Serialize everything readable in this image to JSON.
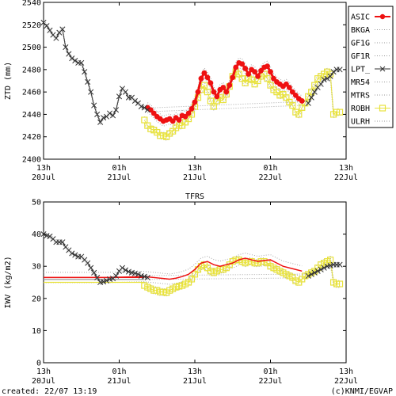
{
  "footer": {
    "created": "created: 22/07 13:19",
    "credit": "(c)KNMI/EGVAP"
  },
  "legend": [
    {
      "name": "ASIC",
      "color": "#ee1111",
      "style": "red-dot-line"
    },
    {
      "name": "BKGA",
      "color": "#999999",
      "style": "dotted"
    },
    {
      "name": "GF1G",
      "color": "#999999",
      "style": "dotted"
    },
    {
      "name": "GF1R",
      "color": "#999999",
      "style": "dotted"
    },
    {
      "name": "LPT_",
      "color": "#333333",
      "style": "x-line"
    },
    {
      "name": "MR54",
      "color": "#999999",
      "style": "dotted"
    },
    {
      "name": "MTRS",
      "color": "#999999",
      "style": "dotted"
    },
    {
      "name": "ROBH",
      "color": "#e8e23c",
      "style": "yellow-square-line"
    },
    {
      "name": "ULRH",
      "color": "#999999",
      "style": "dotted"
    }
  ],
  "chart_data": [
    {
      "type": "line",
      "title": "",
      "ylabel": "ZTD (mm)",
      "xlabel": "",
      "ylim": [
        2400,
        2540
      ],
      "yticks": [
        2400,
        2420,
        2440,
        2460,
        2480,
        2500,
        2520,
        2540
      ],
      "xlim": [
        0,
        48
      ],
      "xticks": [
        {
          "x": 0,
          "line1": "13h",
          "line2": "20Jul"
        },
        {
          "x": 12,
          "line1": "01h",
          "line2": "21Jul"
        },
        {
          "x": 24,
          "line1": "13h",
          "line2": "21Jul"
        },
        {
          "x": 36,
          "line1": "01h",
          "line2": "22Jul"
        },
        {
          "x": 48,
          "line1": "13h",
          "line2": "22Jul"
        }
      ],
      "grid": false,
      "legend_position": "right",
      "series": [
        {
          "name": "ASIC",
          "x": [
            16.5,
            17,
            17.5,
            18,
            18.5,
            19,
            19.5,
            20,
            20.5,
            21,
            21.5,
            22,
            22.5,
            23,
            23.5,
            24,
            24.5,
            25,
            25.5,
            26,
            26.5,
            27,
            27.5,
            28,
            28.5,
            29,
            29.5,
            30,
            30.5,
            31,
            31.5,
            32,
            32.5,
            33,
            33.5,
            34,
            34.5,
            35,
            35.5,
            36,
            36.5,
            37,
            37.5,
            38,
            38.5,
            39,
            39.5,
            40,
            40.5,
            41
          ],
          "y": [
            2446,
            2444,
            2441,
            2438,
            2436,
            2434,
            2435,
            2436,
            2434,
            2437,
            2435,
            2439,
            2438,
            2441,
            2445,
            2451,
            2460,
            2472,
            2477,
            2473,
            2468,
            2460,
            2456,
            2462,
            2464,
            2460,
            2466,
            2473,
            2482,
            2486,
            2485,
            2481,
            2476,
            2480,
            2478,
            2474,
            2479,
            2482,
            2483,
            2478,
            2472,
            2469,
            2467,
            2465,
            2467,
            2464,
            2460,
            2457,
            2454,
            2452
          ]
        },
        {
          "name": "LPT_",
          "x": [
            0,
            0.5,
            1,
            1.5,
            2,
            2.5,
            3,
            3.5,
            4,
            4.5,
            5,
            5.5,
            6,
            6.5,
            7,
            7.5,
            8,
            8.5,
            9,
            9.5,
            10,
            10.5,
            11,
            11.5,
            12,
            12.5,
            13,
            13.5,
            14,
            14.5,
            15,
            15.5,
            16,
            16.5,
            42,
            42.5,
            43,
            43.5,
            44,
            44.5,
            45,
            45.5,
            46,
            46.5,
            47
          ],
          "y": [
            2522,
            2519,
            2515,
            2511,
            2508,
            2513,
            2516,
            2500,
            2494,
            2490,
            2488,
            2486,
            2486,
            2478,
            2469,
            2460,
            2448,
            2440,
            2433,
            2437,
            2438,
            2441,
            2439,
            2444,
            2456,
            2463,
            2460,
            2455,
            2455,
            2452,
            2450,
            2447,
            2446,
            2444,
            2450,
            2455,
            2460,
            2464,
            2467,
            2471,
            2472,
            2474,
            2478,
            2480,
            2480
          ]
        },
        {
          "name": "ROBH",
          "x": [
            16,
            16.5,
            17,
            17.5,
            18,
            18.5,
            19,
            19.5,
            20,
            20.5,
            21,
            21.5,
            22,
            22.5,
            23,
            23.5,
            24,
            24.5,
            25,
            25.5,
            26,
            26.5,
            27,
            27.5,
            28,
            28.5,
            29,
            29.5,
            30,
            30.5,
            31,
            31.5,
            32,
            32.5,
            33,
            33.5,
            34,
            34.5,
            35,
            35.5,
            36,
            36.5,
            37,
            37.5,
            38,
            38.5,
            39,
            39.5,
            40,
            40.5,
            41,
            41.5,
            42,
            42.5,
            43,
            43.5,
            44,
            44.5,
            45,
            45.5,
            46,
            46.5,
            47
          ],
          "y": [
            2435,
            2430,
            2427,
            2426,
            2424,
            2421,
            2421,
            2420,
            2423,
            2425,
            2428,
            2430,
            2430,
            2433,
            2436,
            2440,
            2447,
            2455,
            2462,
            2466,
            2460,
            2452,
            2447,
            2452,
            2455,
            2453,
            2458,
            2465,
            2474,
            2478,
            2476,
            2472,
            2468,
            2472,
            2471,
            2467,
            2470,
            2474,
            2476,
            2472,
            2466,
            2462,
            2460,
            2457,
            2458,
            2455,
            2451,
            2448,
            2442,
            2440,
            2446,
            2450,
            2456,
            2460,
            2466,
            2472,
            2474,
            2476,
            2478,
            2476,
            2440,
            2442,
            2442
          ]
        }
      ]
    },
    {
      "type": "line",
      "title": "TFRS",
      "ylabel": "IWV (kg/m2)",
      "xlabel": "",
      "ylim": [
        0,
        50
      ],
      "yticks": [
        0,
        10,
        20,
        30,
        40,
        50
      ],
      "xlim": [
        0,
        48
      ],
      "xticks": [
        {
          "x": 0,
          "line1": "13h",
          "line2": "20Jul"
        },
        {
          "x": 12,
          "line1": "01h",
          "line2": "21Jul"
        },
        {
          "x": 24,
          "line1": "13h",
          "line2": "21Jul"
        },
        {
          "x": 36,
          "line1": "01h",
          "line2": "22Jul"
        },
        {
          "x": 48,
          "line1": "13h",
          "line2": "22Jul"
        }
      ],
      "grid": false,
      "series": [
        {
          "name": "ASIC",
          "x": [
            0,
            2,
            4,
            6,
            8,
            10,
            12,
            14,
            16,
            17,
            18,
            19,
            20,
            21,
            22,
            23,
            24,
            25,
            26,
            27,
            28,
            29,
            30,
            31,
            32,
            33,
            34,
            35,
            36,
            37,
            38,
            39,
            40,
            41
          ],
          "y": [
            26.5,
            26.5,
            26.5,
            26.5,
            26.5,
            26.5,
            26.6,
            26.7,
            26.8,
            26.6,
            26.4,
            26.2,
            26.0,
            26.3,
            26.8,
            27.5,
            29.0,
            31.0,
            31.5,
            30.5,
            30.0,
            30.5,
            31.0,
            32.0,
            32.5,
            32.0,
            31.5,
            31.8,
            32.0,
            31.0,
            30.0,
            29.5,
            29.0,
            28.5
          ]
        },
        {
          "name": "LPT_",
          "x": [
            0,
            0.5,
            1,
            1.5,
            2,
            2.5,
            3,
            3.5,
            4,
            4.5,
            5,
            5.5,
            6,
            6.5,
            7,
            7.5,
            8,
            8.5,
            9,
            9.5,
            10,
            10.5,
            11,
            11.5,
            12,
            12.5,
            13,
            13.5,
            14,
            14.5,
            15,
            15.5,
            16,
            16.5,
            42,
            42.5,
            43,
            43.5,
            44,
            44.5,
            45,
            45.5,
            46,
            46.5,
            47
          ],
          "y": [
            40,
            39.5,
            39.3,
            38.5,
            37.5,
            37.5,
            37.5,
            36,
            35,
            34,
            33.5,
            33,
            33,
            32,
            31,
            29.5,
            28,
            26.5,
            25,
            25.2,
            25.5,
            26,
            26.2,
            27,
            28.5,
            29.5,
            28.8,
            28.3,
            28,
            27.8,
            27.5,
            27,
            26.8,
            26.5,
            27,
            27.5,
            28,
            28.5,
            29,
            29.5,
            30,
            30.2,
            30.5,
            30.5,
            30.5
          ]
        },
        {
          "name": "ROBH",
          "x": [
            16,
            16.5,
            17,
            17.5,
            18,
            18.5,
            19,
            19.5,
            20,
            20.5,
            21,
            21.5,
            22,
            22.5,
            23,
            23.5,
            24,
            24.5,
            25,
            25.5,
            26,
            26.5,
            27,
            27.5,
            28,
            28.5,
            29,
            29.5,
            30,
            30.5,
            31,
            31.5,
            32,
            32.5,
            33,
            33.5,
            34,
            34.5,
            35,
            35.5,
            36,
            36.5,
            37,
            37.5,
            38,
            38.5,
            39,
            39.5,
            40,
            40.5,
            41,
            41.5,
            42,
            42.5,
            43,
            43.5,
            44,
            44.5,
            45,
            45.5,
            46,
            46.5,
            47
          ],
          "y": [
            24,
            23.5,
            23,
            22.5,
            22.5,
            22,
            22,
            21.8,
            22.5,
            23,
            23.5,
            23.8,
            24,
            24.5,
            25,
            26,
            27.5,
            29,
            30,
            30.5,
            29.5,
            28.5,
            28,
            28.5,
            29,
            29,
            29.5,
            30.5,
            31.5,
            32,
            32,
            31.5,
            31,
            31.5,
            31.5,
            31,
            31,
            31.5,
            31.5,
            31,
            30,
            29.5,
            29,
            28.5,
            28,
            27.5,
            27,
            26.5,
            25.5,
            25,
            26,
            27,
            27.5,
            28,
            28.5,
            29.5,
            30.5,
            31,
            31.5,
            32,
            25,
            24.5,
            24.5
          ]
        }
      ]
    }
  ]
}
